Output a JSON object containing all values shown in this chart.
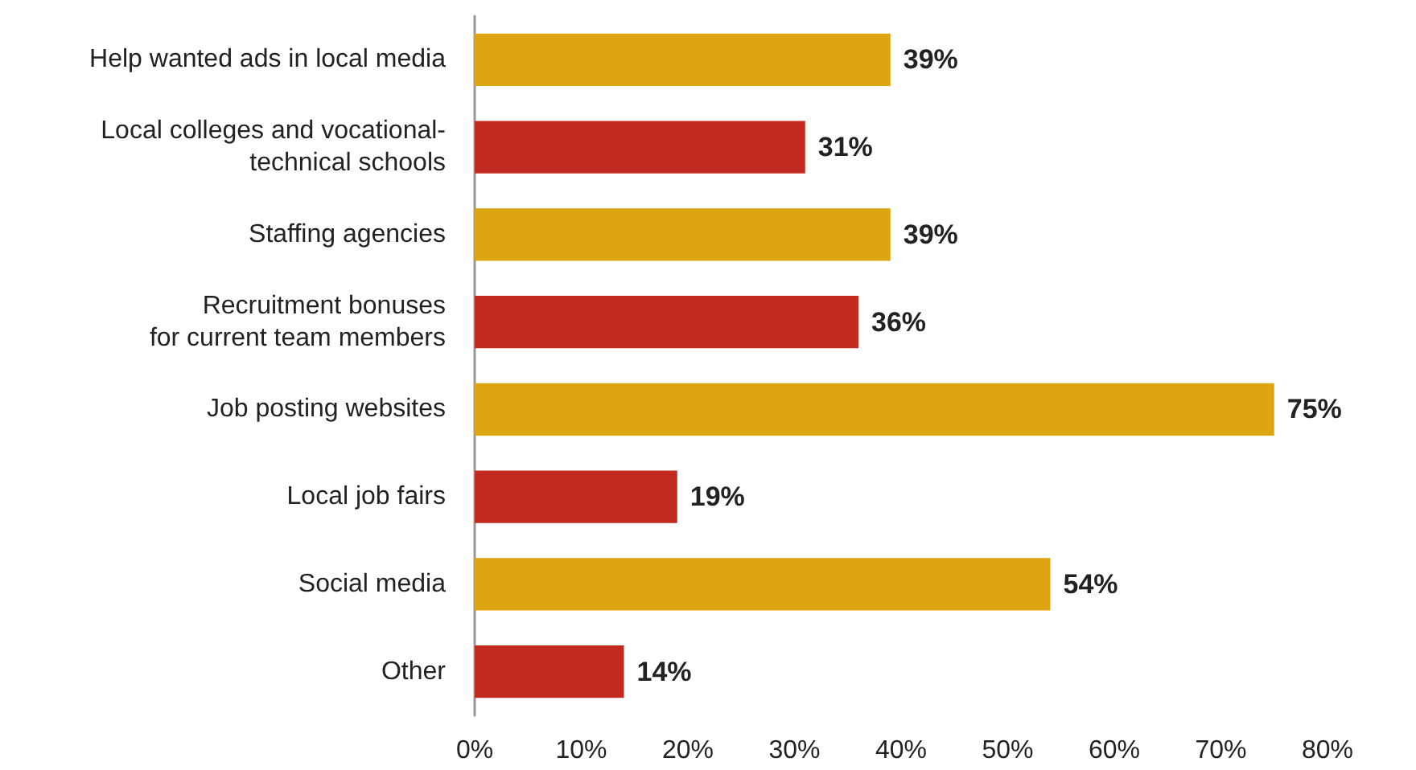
{
  "chart_data": {
    "type": "bar",
    "orientation": "horizontal",
    "categories": [
      "Help wanted ads in local media",
      "Local colleges and vocational-\ntechnical schools",
      "Staffing agencies",
      "Recruitment bonuses\nfor current team members",
      "Job posting websites",
      "Local job fairs",
      "Social media",
      "Other"
    ],
    "values": [
      39,
      31,
      39,
      36,
      75,
      19,
      54,
      14
    ],
    "colors": [
      "#dca511",
      "#c32a1f",
      "#dca511",
      "#c32a1f",
      "#dca511",
      "#c32a1f",
      "#dca511",
      "#c32a1f"
    ],
    "value_labels": [
      "39%",
      "31%",
      "39%",
      "36%",
      "75%",
      "19%",
      "54%",
      "14%"
    ],
    "xlim": [
      0,
      80
    ],
    "xticks": [
      {
        "value": 0,
        "label": "0%"
      },
      {
        "value": 10,
        "label": "10%"
      },
      {
        "value": 20,
        "label": "20%"
      },
      {
        "value": 30,
        "label": "30%"
      },
      {
        "value": 40,
        "label": "40%"
      },
      {
        "value": 50,
        "label": "50%"
      },
      {
        "value": 60,
        "label": "60%"
      },
      {
        "value": 70,
        "label": "70%"
      },
      {
        "value": 80,
        "label": "80%"
      }
    ],
    "grid": false
  }
}
